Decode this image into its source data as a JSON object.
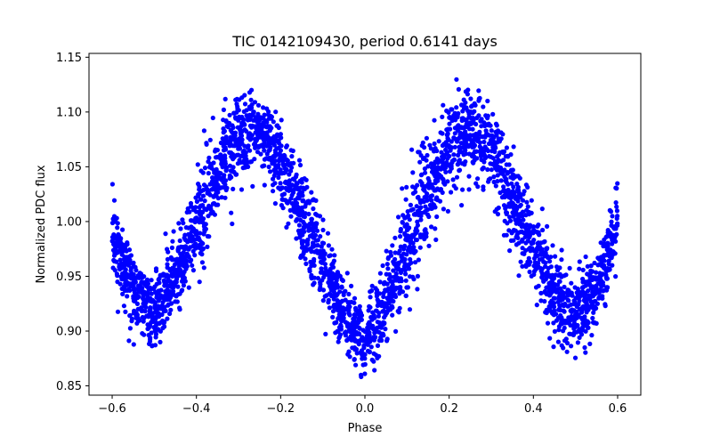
{
  "chart_data": {
    "type": "scatter",
    "title": "TIC 0142109430, period 0.6141 days",
    "xlabel": "Phase",
    "ylabel": "Normalized PDC flux",
    "xlim": [
      -0.655,
      0.655
    ],
    "ylim": [
      0.8415,
      1.1535
    ],
    "x_ticks": [
      -0.6,
      -0.4,
      -0.2,
      0.0,
      0.2,
      0.4,
      0.6
    ],
    "x_tick_labels": [
      "−0.6",
      "−0.4",
      "−0.2",
      "0.0",
      "0.2",
      "0.4",
      "0.6"
    ],
    "y_ticks": [
      0.85,
      0.9,
      0.95,
      1.0,
      1.05,
      1.1,
      1.15
    ],
    "y_tick_labels": [
      "0.85",
      "0.90",
      "0.95",
      "1.00",
      "1.05",
      "1.10",
      "1.15"
    ],
    "grid": false,
    "marker_color": "#0000ff",
    "series": [
      {
        "x_range": [
          -0.6,
          0.6
        ],
        "x": [
          -0.6,
          -0.55,
          -0.5,
          -0.45,
          -0.4,
          -0.35,
          -0.3,
          -0.25,
          -0.2,
          -0.15,
          -0.1,
          -0.05,
          0.0,
          0.05,
          0.1,
          0.15,
          0.2,
          0.25,
          0.3,
          0.35,
          0.4,
          0.45,
          0.5,
          0.55,
          0.6
        ],
        "y_center": [
          0.99,
          0.935,
          0.915,
          0.95,
          0.995,
          1.045,
          1.075,
          1.08,
          1.055,
          1.005,
          0.96,
          0.915,
          0.89,
          0.925,
          0.975,
          1.03,
          1.07,
          1.085,
          1.065,
          1.02,
          0.975,
          0.935,
          0.91,
          0.94,
          0.995
        ],
        "y_spread": [
          0.03,
          0.03,
          0.03,
          0.035,
          0.04,
          0.04,
          0.035,
          0.03,
          0.035,
          0.035,
          0.035,
          0.03,
          0.025,
          0.035,
          0.04,
          0.04,
          0.035,
          0.035,
          0.035,
          0.04,
          0.035,
          0.035,
          0.03,
          0.03,
          0.035
        ]
      }
    ]
  }
}
